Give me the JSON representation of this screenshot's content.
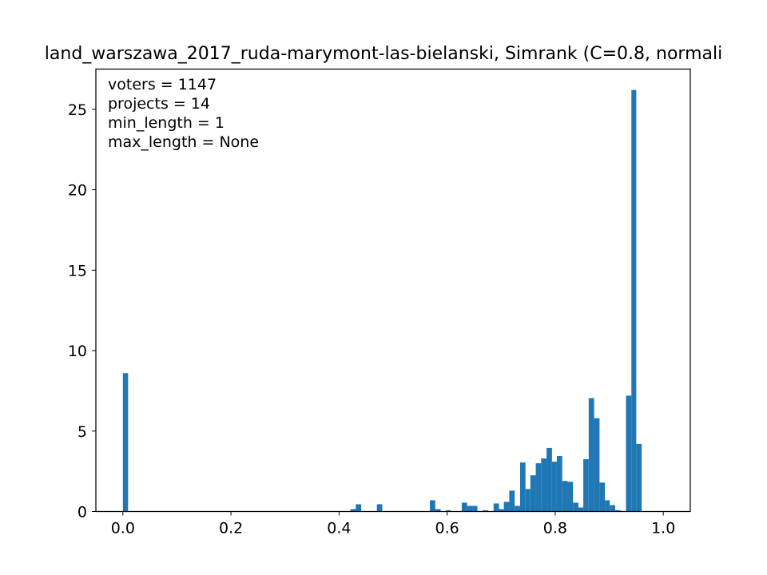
{
  "chart_data": {
    "type": "bar",
    "title": "land_warszawa_2017_ruda-marymont-las-bielanski, Simrank (C=0.8, normali",
    "xlabel": "",
    "ylabel": "",
    "xlim": [
      -0.05,
      1.05
    ],
    "ylim": [
      0,
      27.5
    ],
    "xticks": [
      {
        "value": 0.0,
        "label": "0.0"
      },
      {
        "value": 0.2,
        "label": "0.2"
      },
      {
        "value": 0.4,
        "label": "0.4"
      },
      {
        "value": 0.6,
        "label": "0.6"
      },
      {
        "value": 0.8,
        "label": "0.8"
      },
      {
        "value": 1.0,
        "label": "1.0"
      }
    ],
    "yticks": [
      {
        "value": 0,
        "label": "0"
      },
      {
        "value": 5,
        "label": "5"
      },
      {
        "value": 10,
        "label": "10"
      },
      {
        "value": 15,
        "label": "15"
      },
      {
        "value": 20,
        "label": "20"
      },
      {
        "value": 25,
        "label": "25"
      }
    ],
    "bar_color": "#1f77b4",
    "grid": false,
    "annotations": [
      "voters = 1147",
      "projects = 14",
      "min_length = 1",
      "max_length = None"
    ],
    "bins": [
      {
        "x0": 0.0,
        "x1": 0.0096,
        "value": 8.6
      },
      {
        "x0": 0.421,
        "x1": 0.431,
        "value": 0.15
      },
      {
        "x0": 0.431,
        "x1": 0.441,
        "value": 0.45
      },
      {
        "x0": 0.47,
        "x1": 0.48,
        "value": 0.45
      },
      {
        "x0": 0.568,
        "x1": 0.578,
        "value": 0.7
      },
      {
        "x0": 0.578,
        "x1": 0.588,
        "value": 0.15
      },
      {
        "x0": 0.598,
        "x1": 0.607,
        "value": 0.08
      },
      {
        "x0": 0.627,
        "x1": 0.637,
        "value": 0.55
      },
      {
        "x0": 0.637,
        "x1": 0.647,
        "value": 0.35
      },
      {
        "x0": 0.647,
        "x1": 0.656,
        "value": 0.35
      },
      {
        "x0": 0.666,
        "x1": 0.676,
        "value": 0.08
      },
      {
        "x0": 0.686,
        "x1": 0.696,
        "value": 0.5
      },
      {
        "x0": 0.696,
        "x1": 0.705,
        "value": 0.15
      },
      {
        "x0": 0.705,
        "x1": 0.715,
        "value": 0.6
      },
      {
        "x0": 0.715,
        "x1": 0.725,
        "value": 1.3
      },
      {
        "x0": 0.725,
        "x1": 0.735,
        "value": 0.35
      },
      {
        "x0": 0.735,
        "x1": 0.745,
        "value": 3.05
      },
      {
        "x0": 0.745,
        "x1": 0.754,
        "value": 1.4
      },
      {
        "x0": 0.754,
        "x1": 0.764,
        "value": 2.25
      },
      {
        "x0": 0.764,
        "x1": 0.774,
        "value": 3.0
      },
      {
        "x0": 0.774,
        "x1": 0.784,
        "value": 3.3
      },
      {
        "x0": 0.784,
        "x1": 0.794,
        "value": 3.95
      },
      {
        "x0": 0.794,
        "x1": 0.803,
        "value": 3.1
      },
      {
        "x0": 0.803,
        "x1": 0.813,
        "value": 3.45
      },
      {
        "x0": 0.813,
        "x1": 0.823,
        "value": 1.9
      },
      {
        "x0": 0.823,
        "x1": 0.833,
        "value": 1.85
      },
      {
        "x0": 0.833,
        "x1": 0.843,
        "value": 0.55
      },
      {
        "x0": 0.843,
        "x1": 0.852,
        "value": 0.25
      },
      {
        "x0": 0.852,
        "x1": 0.862,
        "value": 3.25
      },
      {
        "x0": 0.862,
        "x1": 0.872,
        "value": 7.05
      },
      {
        "x0": 0.872,
        "x1": 0.882,
        "value": 5.8
      },
      {
        "x0": 0.882,
        "x1": 0.892,
        "value": 1.8
      },
      {
        "x0": 0.892,
        "x1": 0.901,
        "value": 0.7
      },
      {
        "x0": 0.901,
        "x1": 0.911,
        "value": 0.4
      },
      {
        "x0": 0.911,
        "x1": 0.921,
        "value": 0.08
      },
      {
        "x0": 0.931,
        "x1": 0.941,
        "value": 7.2
      },
      {
        "x0": 0.941,
        "x1": 0.95,
        "value": 26.2
      },
      {
        "x0": 0.95,
        "x1": 0.96,
        "value": 4.2
      }
    ]
  }
}
